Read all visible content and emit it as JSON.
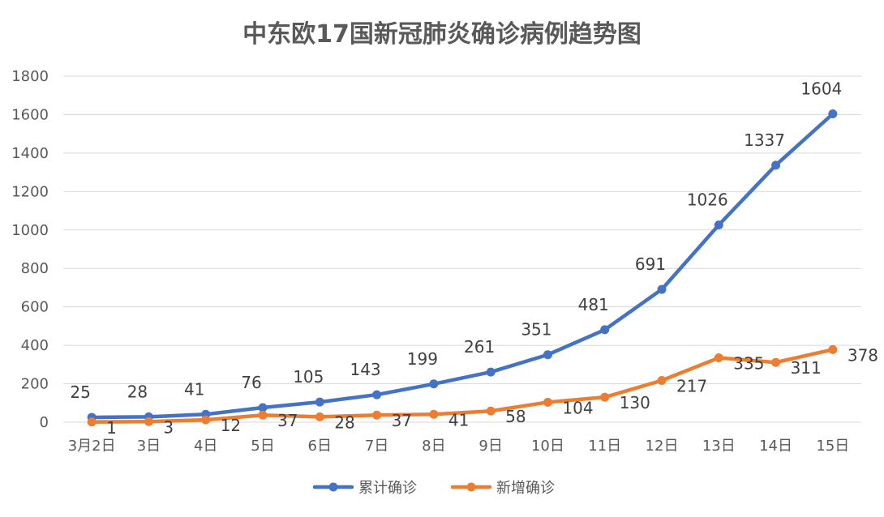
{
  "chart_data": {
    "type": "line",
    "title": "中东欧17国新冠肺炎确诊病例趋势图",
    "xlabel": "",
    "ylabel": "",
    "categories": [
      "3月2日",
      "3日",
      "4日",
      "5日",
      "6日",
      "7日",
      "8日",
      "9日",
      "10日",
      "11日",
      "12日",
      "13日",
      "14日",
      "15日"
    ],
    "ylim": [
      0,
      1800
    ],
    "yticks": [
      "0",
      "200",
      "400",
      "600",
      "800",
      "1000",
      "1200",
      "1400",
      "1600",
      "1800"
    ],
    "grid": true,
    "legend_position": "bottom",
    "series": [
      {
        "name": "累计确诊",
        "color": "#4472c4",
        "values": [
          25,
          28,
          41,
          76,
          105,
          143,
          199,
          261,
          351,
          481,
          691,
          1026,
          1337,
          1604
        ],
        "labels": [
          "25",
          "28",
          "41",
          "76",
          "105",
          "143",
          "199",
          "261",
          "351",
          "481",
          "691",
          "1026",
          "1337",
          "1604"
        ]
      },
      {
        "name": "新增确诊",
        "color": "#ed7d31",
        "values": [
          1,
          3,
          12,
          37,
          28,
          37,
          41,
          58,
          104,
          130,
          217,
          335,
          311,
          378
        ],
        "labels": [
          "1",
          "3",
          "12",
          "37",
          "28",
          "37",
          "41",
          "58",
          "104",
          "130",
          "217",
          "335",
          "311",
          "378"
        ]
      }
    ]
  }
}
